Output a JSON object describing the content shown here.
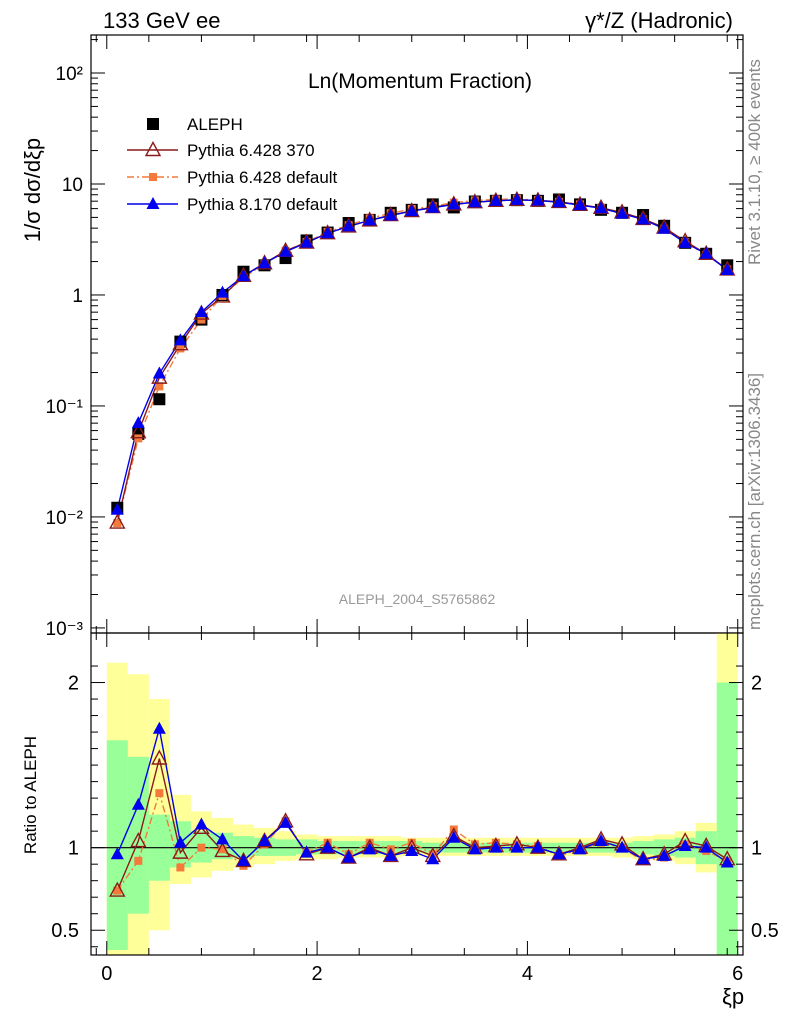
{
  "header": {
    "left": "133 GeV ee",
    "right": "γ*/Z (Hadronic)"
  },
  "side_labels": {
    "rivet": "Rivet 3.1.10, ≥ 400k events",
    "mcplots": "mcplots.cern.ch [arXiv:1306.3436]"
  },
  "chart_data": [
    {
      "type": "scatter",
      "title": "Ln(Momentum Fraction)",
      "watermark": "ALEPH_2004_S5765862",
      "ylabel": "1/σ dσ/dξp",
      "xlabel": "ξp",
      "xlim": [
        -0.15,
        6.05
      ],
      "ylim": [
        0.0009,
        220
      ],
      "yscale": "log",
      "yticks": [
        {
          "v": 0.001,
          "label": "10⁻³"
        },
        {
          "v": 0.01,
          "label": "10⁻²"
        },
        {
          "v": 0.1,
          "label": "10⁻¹"
        },
        {
          "v": 1,
          "label": "1"
        },
        {
          "v": 10,
          "label": "10"
        },
        {
          "v": 100,
          "label": "10²"
        }
      ],
      "x": [
        0.1,
        0.3,
        0.5,
        0.7,
        0.9,
        1.1,
        1.3,
        1.5,
        1.7,
        1.9,
        2.1,
        2.3,
        2.5,
        2.7,
        2.9,
        3.1,
        3.3,
        3.5,
        3.7,
        3.9,
        4.1,
        4.3,
        4.5,
        4.7,
        4.9,
        5.1,
        5.3,
        5.5,
        5.7,
        5.9
      ],
      "series": [
        {
          "name": "ALEPH",
          "color": "#000000",
          "marker": "square",
          "values": [
            0.0121,
            0.056,
            0.115,
            0.38,
            0.6,
            1.0,
            1.62,
            1.85,
            2.15,
            3.1,
            3.65,
            4.45,
            4.75,
            5.5,
            5.85,
            6.55,
            6.15,
            6.95,
            7.05,
            7.15,
            7.05,
            7.25,
            6.55,
            5.85,
            5.5,
            5.25,
            4.2,
            2.95,
            2.35,
            1.85
          ]
        },
        {
          "name": "Pythia 6.428 370",
          "color": "#8b1a1a",
          "marker": "triangle-open",
          "line": "solid",
          "values": [
            0.0089,
            0.058,
            0.18,
            0.36,
            0.68,
            0.97,
            1.49,
            1.93,
            2.5,
            2.97,
            3.6,
            4.15,
            4.7,
            5.25,
            5.7,
            6.2,
            6.55,
            6.85,
            7.05,
            7.2,
            7.1,
            6.9,
            6.5,
            6.1,
            5.55,
            4.85,
            4.05,
            3.05,
            2.35,
            1.7
          ]
        },
        {
          "name": "Pythia 6.428 default",
          "color": "#f47a3c",
          "marker": "square-small",
          "line": "dashdot",
          "values": [
            0.0088,
            0.051,
            0.15,
            0.33,
            0.6,
            0.98,
            1.44,
            1.9,
            2.5,
            3.0,
            3.7,
            4.25,
            4.9,
            5.45,
            5.95,
            6.3,
            6.8,
            7.1,
            7.25,
            7.35,
            7.15,
            6.9,
            6.55,
            6.05,
            5.4,
            4.8,
            3.95,
            3.0,
            2.3,
            1.7
          ]
        },
        {
          "name": "Pythia 8.170 default",
          "color": "#0000ee",
          "marker": "triangle",
          "line": "solid",
          "values": [
            0.0116,
            0.07,
            0.196,
            0.39,
            0.7,
            1.05,
            1.48,
            1.93,
            2.45,
            2.96,
            3.6,
            4.15,
            4.7,
            5.2,
            5.7,
            6.1,
            6.55,
            6.85,
            7.05,
            7.2,
            7.1,
            6.85,
            6.45,
            6.05,
            5.4,
            4.8,
            3.95,
            2.95,
            2.35,
            1.68
          ]
        }
      ]
    },
    {
      "type": "scatter",
      "ylabel": "Ratio to ALEPH",
      "xlabel": "ξp",
      "xlim": [
        -0.15,
        6.05
      ],
      "ylim": [
        0.35,
        2.3
      ],
      "yticks": [
        {
          "v": 0.5,
          "label": "0.5"
        },
        {
          "v": 1,
          "label": "1"
        },
        {
          "v": 2,
          "label": "2"
        }
      ],
      "xticks": [
        {
          "v": 0,
          "label": "0"
        },
        {
          "v": 2,
          "label": "2"
        },
        {
          "v": 4,
          "label": "4"
        },
        {
          "v": 6,
          "label": "6"
        }
      ],
      "x": [
        0.1,
        0.3,
        0.5,
        0.7,
        0.9,
        1.1,
        1.3,
        1.5,
        1.7,
        1.9,
        2.1,
        2.3,
        2.5,
        2.7,
        2.9,
        3.1,
        3.3,
        3.5,
        3.7,
        3.9,
        4.1,
        4.3,
        4.5,
        4.7,
        4.9,
        5.1,
        5.3,
        5.5,
        5.7,
        5.9
      ],
      "bands": {
        "bins": [
          [
            0,
            0.2
          ],
          [
            0.2,
            0.4
          ],
          [
            0.4,
            0.6
          ],
          [
            0.6,
            0.8
          ],
          [
            0.8,
            1.0
          ],
          [
            1.0,
            1.2
          ],
          [
            1.2,
            1.4
          ],
          [
            1.4,
            1.6
          ],
          [
            1.6,
            1.8
          ],
          [
            1.8,
            2.0
          ],
          [
            2.0,
            2.2
          ],
          [
            2.2,
            2.4
          ],
          [
            2.4,
            2.6
          ],
          [
            2.6,
            2.8
          ],
          [
            2.8,
            3.0
          ],
          [
            3.0,
            3.2
          ],
          [
            3.2,
            3.4
          ],
          [
            3.4,
            3.6
          ],
          [
            3.6,
            3.8
          ],
          [
            3.8,
            4.0
          ],
          [
            4.0,
            4.2
          ],
          [
            4.2,
            4.4
          ],
          [
            4.4,
            4.6
          ],
          [
            4.6,
            4.8
          ],
          [
            4.8,
            5.0
          ],
          [
            5.0,
            5.2
          ],
          [
            5.2,
            5.4
          ],
          [
            5.4,
            5.6
          ],
          [
            5.6,
            5.8
          ],
          [
            5.8,
            6.0
          ]
        ],
        "yellow": [
          [
            0.3,
            2.12
          ],
          [
            0.3,
            2.05
          ],
          [
            0.5,
            1.9
          ],
          [
            0.78,
            1.32
          ],
          [
            0.82,
            1.22
          ],
          [
            0.86,
            1.18
          ],
          [
            0.88,
            1.14
          ],
          [
            0.9,
            1.12
          ],
          [
            0.92,
            1.1
          ],
          [
            0.93,
            1.08
          ],
          [
            0.93,
            1.07
          ],
          [
            0.94,
            1.07
          ],
          [
            0.94,
            1.07
          ],
          [
            0.94,
            1.07
          ],
          [
            0.95,
            1.06
          ],
          [
            0.95,
            1.06
          ],
          [
            0.95,
            1.06
          ],
          [
            0.95,
            1.06
          ],
          [
            0.95,
            1.06
          ],
          [
            0.95,
            1.06
          ],
          [
            0.95,
            1.06
          ],
          [
            0.95,
            1.06
          ],
          [
            0.95,
            1.06
          ],
          [
            0.95,
            1.06
          ],
          [
            0.94,
            1.06
          ],
          [
            0.93,
            1.07
          ],
          [
            0.92,
            1.08
          ],
          [
            0.9,
            1.1
          ],
          [
            0.85,
            1.15
          ],
          [
            0.35,
            2.3
          ]
        ],
        "green": [
          [
            0.38,
            1.65
          ],
          [
            0.6,
            1.55
          ],
          [
            0.8,
            1.2
          ],
          [
            0.88,
            1.16
          ],
          [
            0.91,
            1.1
          ],
          [
            0.93,
            1.09
          ],
          [
            0.94,
            1.07
          ],
          [
            0.95,
            1.06
          ],
          [
            0.95,
            1.05
          ],
          [
            0.96,
            1.05
          ],
          [
            0.96,
            1.04
          ],
          [
            0.96,
            1.04
          ],
          [
            0.96,
            1.04
          ],
          [
            0.97,
            1.04
          ],
          [
            0.97,
            1.04
          ],
          [
            0.97,
            1.03
          ],
          [
            0.97,
            1.03
          ],
          [
            0.97,
            1.03
          ],
          [
            0.97,
            1.03
          ],
          [
            0.97,
            1.03
          ],
          [
            0.97,
            1.03
          ],
          [
            0.97,
            1.03
          ],
          [
            0.97,
            1.03
          ],
          [
            0.97,
            1.03
          ],
          [
            0.97,
            1.03
          ],
          [
            0.96,
            1.04
          ],
          [
            0.95,
            1.05
          ],
          [
            0.94,
            1.06
          ],
          [
            0.9,
            1.1
          ],
          [
            0.35,
            2.0
          ]
        ]
      },
      "series": [
        {
          "name": "Pythia 6.428 370",
          "color": "#8b1a1a",
          "marker": "triangle-open",
          "line": "solid",
          "values": [
            0.74,
            1.04,
            1.54,
            0.97,
            1.12,
            0.98,
            0.92,
            1.04,
            1.16,
            0.96,
            1.0,
            0.94,
            1.0,
            0.95,
            1.0,
            0.95,
            1.07,
            1.0,
            1.01,
            1.02,
            1.0,
            0.96,
            1.0,
            1.05,
            1.02,
            0.93,
            0.96,
            1.04,
            1.01,
            0.93
          ]
        },
        {
          "name": "Pythia 6.428 default",
          "color": "#f47a3c",
          "marker": "square-small",
          "line": "dashdot",
          "values": [
            0.74,
            0.92,
            1.33,
            0.88,
            1.0,
            0.99,
            0.89,
            1.02,
            1.16,
            0.97,
            1.03,
            0.96,
            1.03,
            0.99,
            1.03,
            0.96,
            1.11,
            1.02,
            1.03,
            1.02,
            1.01,
            0.95,
            0.99,
            1.03,
            1.0,
            0.92,
            0.94,
            1.02,
            0.98,
            0.92
          ]
        },
        {
          "name": "Pythia 8.170 default",
          "color": "#0000ee",
          "marker": "triangle",
          "line": "solid",
          "values": [
            0.96,
            1.26,
            1.72,
            1.03,
            1.14,
            1.05,
            0.92,
            1.04,
            1.15,
            0.97,
            1.0,
            0.94,
            0.99,
            0.95,
            0.98,
            0.93,
            1.06,
            0.99,
            1.0,
            1.0,
            1.0,
            0.96,
            0.99,
            1.04,
            1.0,
            0.93,
            0.95,
            1.01,
            1.0,
            0.91
          ]
        }
      ]
    }
  ]
}
